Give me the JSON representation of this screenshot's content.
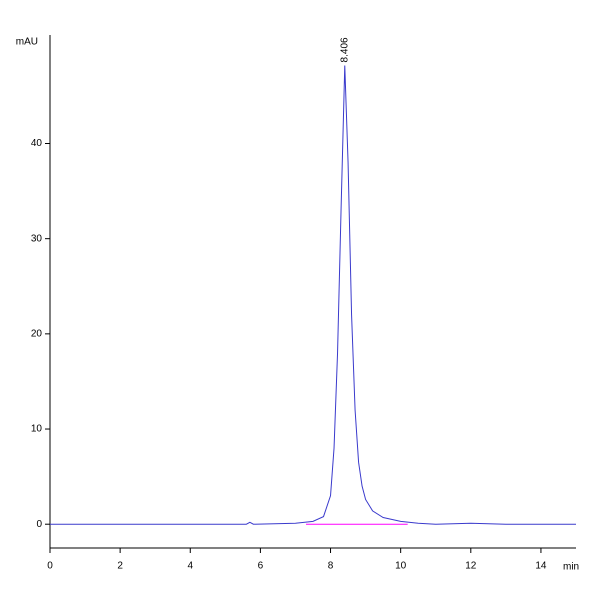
{
  "chart_data": {
    "type": "line",
    "y_label": "mAU",
    "x_label": "min",
    "xlim": [
      0,
      15
    ],
    "ylim": [
      -2.5,
      51.4
    ],
    "xticks": [
      0,
      2,
      4,
      6,
      8,
      10,
      12,
      14
    ],
    "yticks": [
      0,
      10,
      20,
      30,
      40
    ],
    "series": [
      {
        "color": "#3a3acc",
        "x": [
          0,
          2,
          4,
          5.6,
          5.7,
          5.8,
          7,
          7.5,
          7.8,
          8.0,
          8.1,
          8.2,
          8.3,
          8.406,
          8.5,
          8.6,
          8.7,
          8.8,
          8.9,
          9.0,
          9.2,
          9.5,
          10,
          10.5,
          11,
          12,
          13,
          14,
          15
        ],
        "values": [
          0,
          0,
          0,
          0,
          0.2,
          0,
          0.1,
          0.3,
          0.8,
          3,
          8,
          18,
          33,
          48.2,
          38,
          22,
          12,
          6.5,
          4,
          2.6,
          1.4,
          0.7,
          0.3,
          0.1,
          0,
          0.1,
          0,
          0,
          0
        ]
      },
      {
        "color": "#ff00ff",
        "x": [
          7.3,
          10.2
        ],
        "values": [
          0,
          0
        ]
      }
    ],
    "annotations": [
      {
        "x": 8.406,
        "y": 48.2,
        "label": "8.406"
      }
    ]
  }
}
